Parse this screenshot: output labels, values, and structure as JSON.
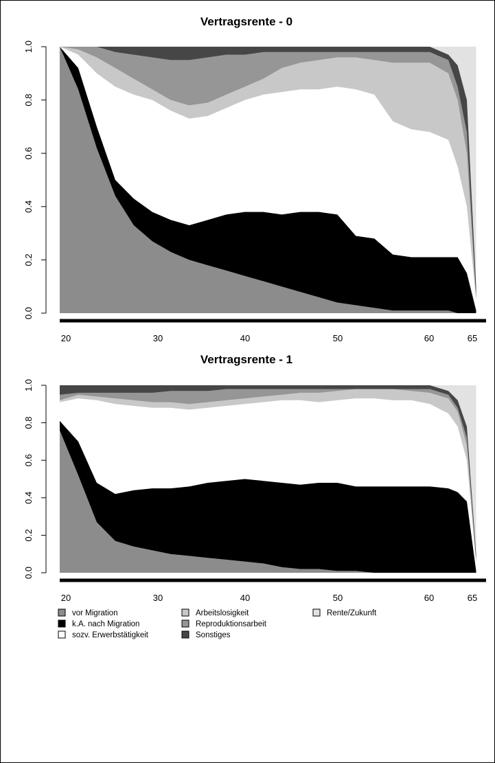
{
  "chart_data": [
    {
      "type": "area",
      "title": "Vertragsrente - 0",
      "x_tick_labels": [
        "20",
        "30",
        "40",
        "50",
        "60",
        "65"
      ],
      "y_tick_labels": [
        "0.0",
        "0.2",
        "0.4",
        "0.6",
        "0.8",
        "1.0"
      ],
      "ylim": [
        0,
        1
      ],
      "grid": false,
      "series_order": [
        "vor Migration",
        "k.A. nach Migration",
        "sozv. Erwerbstätigkeit",
        "Arbeitslosigkeit",
        "Reproduktionsarbeit",
        "Sonstiges",
        "Rente/Zukunft"
      ],
      "x": [
        20,
        22,
        24,
        26,
        28,
        30,
        32,
        34,
        36,
        38,
        40,
        42,
        44,
        46,
        48,
        50,
        52,
        54,
        56,
        58,
        60,
        62,
        63,
        64,
        65
      ],
      "cumulative_upper": [
        [
          1.0,
          0.84,
          0.62,
          0.44,
          0.33,
          0.27,
          0.23,
          0.2,
          0.18,
          0.16,
          0.14,
          0.12,
          0.1,
          0.08,
          0.06,
          0.04,
          0.03,
          0.02,
          0.01,
          0.01,
          0.01,
          0.01,
          0.0,
          0.0,
          0.0
        ],
        [
          1.0,
          0.92,
          0.7,
          0.5,
          0.43,
          0.38,
          0.35,
          0.33,
          0.35,
          0.37,
          0.38,
          0.38,
          0.37,
          0.38,
          0.38,
          0.37,
          0.29,
          0.28,
          0.22,
          0.21,
          0.21,
          0.21,
          0.21,
          0.15,
          0.01
        ],
        [
          1.0,
          0.97,
          0.9,
          0.85,
          0.82,
          0.8,
          0.76,
          0.73,
          0.74,
          0.77,
          0.8,
          0.82,
          0.83,
          0.84,
          0.84,
          0.85,
          0.84,
          0.82,
          0.72,
          0.69,
          0.68,
          0.65,
          0.55,
          0.4,
          0.05
        ],
        [
          1.0,
          0.99,
          0.96,
          0.92,
          0.88,
          0.84,
          0.8,
          0.78,
          0.79,
          0.82,
          0.85,
          0.88,
          0.92,
          0.94,
          0.95,
          0.96,
          0.96,
          0.95,
          0.94,
          0.94,
          0.94,
          0.9,
          0.8,
          0.6,
          0.05
        ],
        [
          1.0,
          1.0,
          1.0,
          0.98,
          0.97,
          0.96,
          0.95,
          0.95,
          0.96,
          0.97,
          0.97,
          0.98,
          0.98,
          0.98,
          0.98,
          0.98,
          0.98,
          0.98,
          0.98,
          0.98,
          0.98,
          0.95,
          0.85,
          0.68,
          0.06
        ],
        [
          1.0,
          1.0,
          1.0,
          1.0,
          1.0,
          1.0,
          1.0,
          1.0,
          1.0,
          1.0,
          1.0,
          1.0,
          1.0,
          1.0,
          1.0,
          1.0,
          1.0,
          1.0,
          1.0,
          1.0,
          1.0,
          0.97,
          0.93,
          0.8,
          0.1
        ],
        [
          1.0,
          1.0,
          1.0,
          1.0,
          1.0,
          1.0,
          1.0,
          1.0,
          1.0,
          1.0,
          1.0,
          1.0,
          1.0,
          1.0,
          1.0,
          1.0,
          1.0,
          1.0,
          1.0,
          1.0,
          1.0,
          1.0,
          1.0,
          1.0,
          1.0
        ]
      ]
    },
    {
      "type": "area",
      "title": "Vertragsrente - 1",
      "x_tick_labels": [
        "20",
        "30",
        "40",
        "50",
        "60",
        "65"
      ],
      "y_tick_labels": [
        "0.0",
        "0.2",
        "0.4",
        "0.6",
        "0.8",
        "1.0"
      ],
      "ylim": [
        0,
        1
      ],
      "grid": false,
      "series_order": [
        "vor Migration",
        "k.A. nach Migration",
        "sozv. Erwerbstätigkeit",
        "Arbeitslosigkeit",
        "Reproduktionsarbeit",
        "Sonstiges",
        "Rente/Zukunft"
      ],
      "x": [
        20,
        22,
        24,
        26,
        28,
        30,
        32,
        34,
        36,
        38,
        40,
        42,
        44,
        46,
        48,
        50,
        52,
        54,
        56,
        58,
        60,
        62,
        63,
        64,
        65
      ],
      "cumulative_upper": [
        [
          0.76,
          0.52,
          0.27,
          0.17,
          0.14,
          0.12,
          0.1,
          0.09,
          0.08,
          0.07,
          0.06,
          0.05,
          0.03,
          0.02,
          0.02,
          0.01,
          0.01,
          0.0,
          0.0,
          0.0,
          0.0,
          0.0,
          0.0,
          0.0,
          0.0
        ],
        [
          0.81,
          0.7,
          0.48,
          0.42,
          0.44,
          0.45,
          0.45,
          0.46,
          0.48,
          0.49,
          0.5,
          0.49,
          0.48,
          0.47,
          0.48,
          0.48,
          0.46,
          0.46,
          0.46,
          0.46,
          0.46,
          0.45,
          0.43,
          0.38,
          0.01
        ],
        [
          0.91,
          0.93,
          0.92,
          0.9,
          0.89,
          0.88,
          0.88,
          0.87,
          0.88,
          0.89,
          0.9,
          0.91,
          0.92,
          0.92,
          0.91,
          0.92,
          0.93,
          0.93,
          0.92,
          0.92,
          0.9,
          0.85,
          0.78,
          0.6,
          0.05
        ],
        [
          0.92,
          0.95,
          0.94,
          0.93,
          0.92,
          0.91,
          0.91,
          0.9,
          0.91,
          0.92,
          0.93,
          0.94,
          0.95,
          0.96,
          0.96,
          0.97,
          0.98,
          0.98,
          0.98,
          0.97,
          0.96,
          0.93,
          0.86,
          0.68,
          0.06
        ],
        [
          0.95,
          0.96,
          0.96,
          0.96,
          0.96,
          0.96,
          0.97,
          0.97,
          0.97,
          0.98,
          0.98,
          0.98,
          0.98,
          0.98,
          0.98,
          0.98,
          0.98,
          0.98,
          0.98,
          0.98,
          0.98,
          0.95,
          0.88,
          0.72,
          0.07
        ],
        [
          1.0,
          1.0,
          1.0,
          1.0,
          1.0,
          1.0,
          1.0,
          1.0,
          1.0,
          1.0,
          1.0,
          1.0,
          1.0,
          1.0,
          1.0,
          1.0,
          1.0,
          1.0,
          1.0,
          1.0,
          1.0,
          0.97,
          0.92,
          0.78,
          0.1
        ],
        [
          1.0,
          1.0,
          1.0,
          1.0,
          1.0,
          1.0,
          1.0,
          1.0,
          1.0,
          1.0,
          1.0,
          1.0,
          1.0,
          1.0,
          1.0,
          1.0,
          1.0,
          1.0,
          1.0,
          1.0,
          1.0,
          1.0,
          1.0,
          1.0,
          1.0
        ]
      ]
    }
  ],
  "legend": {
    "placement": "bottom",
    "items": [
      {
        "label": "vor Migration",
        "color": "#8c8c8c"
      },
      {
        "label": "k.A. nach Migration",
        "color": "#000000"
      },
      {
        "label": "sozv. Erwerbstätigkeit",
        "color": "#ffffff"
      },
      {
        "label": "Arbeitslosigkeit",
        "color": "#c8c8c8"
      },
      {
        "label": "Reproduktionsarbeit",
        "color": "#969696"
      },
      {
        "label": "Sonstiges",
        "color": "#464646"
      },
      {
        "label": "Rente/Zukunft",
        "color": "#e2e2e2"
      }
    ]
  }
}
